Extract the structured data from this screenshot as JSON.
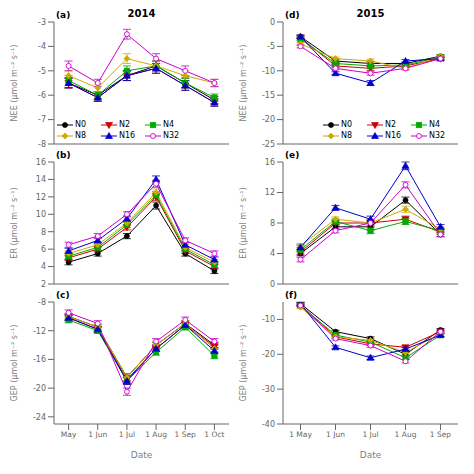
{
  "chart_data": [
    {
      "type": "line",
      "title": "2014",
      "ylabel": "NEE (μmol m⁻² s⁻¹)",
      "annotation": "(a)",
      "categories": [
        "May",
        "1 Jun",
        "1 Jul",
        "1 Aug",
        "1 Sep",
        "1 Oct"
      ],
      "series": [
        {
          "name": "N0",
          "color": "black",
          "marker": "circle",
          "values": [
            -5.5,
            -6.0,
            -5.2,
            -4.8,
            -5.5,
            -6.2
          ],
          "errors": [
            0.2,
            0.15,
            0.2,
            0.2,
            0.2,
            0.15
          ]
        },
        {
          "name": "N2",
          "color": "#cc0000",
          "marker": "triangle_down",
          "values": [
            -5.5,
            -6.1,
            -5.2,
            -4.9,
            -5.6,
            -6.3
          ],
          "errors": [
            0.2,
            0.15,
            0.2,
            0.2,
            0.2,
            0.15
          ]
        },
        {
          "name": "N4",
          "color": "#00aa00",
          "marker": "square",
          "values": [
            -5.4,
            -6.0,
            -5.0,
            -4.8,
            -5.5,
            -6.1
          ],
          "errors": [
            0.2,
            0.15,
            0.2,
            0.2,
            0.2,
            0.15
          ]
        },
        {
          "name": "N8",
          "color": "#ccaa00",
          "marker": "diamond",
          "values": [
            -5.2,
            -5.7,
            -4.5,
            -4.8,
            -5.2,
            -5.5
          ],
          "errors": [
            0.2,
            0.15,
            0.2,
            0.2,
            0.2,
            0.15
          ]
        },
        {
          "name": "N16",
          "color": "#0000cc",
          "marker": "triangle_up",
          "values": [
            -5.5,
            -6.1,
            -5.2,
            -4.9,
            -5.6,
            -6.3
          ],
          "errors": [
            0.2,
            0.15,
            0.2,
            0.2,
            0.2,
            0.15
          ]
        },
        {
          "name": "N32",
          "color": "#cc00cc",
          "marker": "circle_open",
          "values": [
            -4.8,
            -5.5,
            -3.5,
            -4.5,
            -5.0,
            -5.5
          ],
          "errors": [
            0.2,
            0.15,
            0.2,
            0.2,
            0.2,
            0.15
          ]
        }
      ],
      "ylim": [
        -8,
        -3
      ],
      "yticks": [
        -8,
        -7,
        -6,
        -5,
        -4,
        -3
      ],
      "grid": false,
      "legend": "lower left",
      "tick_labels": "y"
    },
    {
      "type": "line",
      "ylabel": "ER (μmol m⁻² s⁻¹)",
      "annotation": "(b)",
      "categories": [
        "May",
        "1 Jun",
        "1 Jul",
        "1 Aug",
        "1 Sep",
        "1 Oct"
      ],
      "series": [
        {
          "name": "N0",
          "color": "black",
          "marker": "circle",
          "values": [
            4.5,
            5.5,
            7.5,
            11.0,
            5.5,
            3.5
          ],
          "errors": [
            0.3,
            0.3,
            0.3,
            0.4,
            0.3,
            0.3
          ]
        },
        {
          "name": "N2",
          "color": "#cc0000",
          "marker": "triangle_down",
          "values": [
            5.0,
            6.0,
            8.5,
            12.0,
            5.8,
            4.0
          ],
          "errors": [
            0.3,
            0.3,
            0.3,
            0.4,
            0.3,
            0.3
          ]
        },
        {
          "name": "N4",
          "color": "#00aa00",
          "marker": "square",
          "values": [
            5.2,
            6.2,
            8.8,
            12.2,
            6.0,
            4.2
          ],
          "errors": [
            0.3,
            0.3,
            0.3,
            0.4,
            0.3,
            0.3
          ]
        },
        {
          "name": "N8",
          "color": "#ccaa00",
          "marker": "diamond",
          "values": [
            5.5,
            6.5,
            9.0,
            12.5,
            6.2,
            4.5
          ],
          "errors": [
            0.3,
            0.3,
            0.3,
            0.4,
            0.3,
            0.3
          ]
        },
        {
          "name": "N16",
          "color": "#0000cc",
          "marker": "triangle_up",
          "values": [
            5.8,
            7.0,
            9.5,
            14.0,
            6.5,
            4.8
          ],
          "errors": [
            0.3,
            0.3,
            0.3,
            0.4,
            0.3,
            0.3
          ]
        },
        {
          "name": "N32",
          "color": "#cc00cc",
          "marker": "circle_open",
          "values": [
            6.5,
            7.5,
            10.0,
            13.5,
            7.0,
            5.5
          ],
          "errors": [
            0.3,
            0.3,
            0.3,
            0.4,
            0.3,
            0.3
          ]
        }
      ],
      "ylim": [
        2,
        16
      ],
      "yticks": [
        2,
        4,
        6,
        8,
        10,
        12,
        14,
        16
      ],
      "grid": false,
      "tick_labels": "y"
    },
    {
      "type": "line",
      "xlabel": "Date",
      "ylabel": "GEP (μmol m⁻² s⁻¹)",
      "annotation": "(c)",
      "categories": [
        "May",
        "1 Jun",
        "1 Jul",
        "1 Aug",
        "1 Sep",
        "1 Oct"
      ],
      "series": [
        {
          "name": "N0",
          "color": "black",
          "marker": "circle",
          "values": [
            -10.0,
            -11.5,
            -18.5,
            -14.0,
            -11.0,
            -14.0
          ],
          "errors": [
            0.4,
            0.4,
            0.5,
            0.4,
            0.4,
            0.4
          ]
        },
        {
          "name": "N2",
          "color": "#cc0000",
          "marker": "triangle_down",
          "values": [
            -10.2,
            -11.8,
            -18.8,
            -14.5,
            -11.2,
            -14.2
          ],
          "errors": [
            0.4,
            0.4,
            0.5,
            0.4,
            0.4,
            0.4
          ]
        },
        {
          "name": "N4",
          "color": "#00aa00",
          "marker": "square",
          "values": [
            -10.5,
            -12.0,
            -19.0,
            -15.0,
            -11.5,
            -15.5
          ],
          "errors": [
            0.4,
            0.4,
            0.5,
            0.4,
            0.4,
            0.4
          ]
        },
        {
          "name": "N8",
          "color": "#ccaa00",
          "marker": "diamond",
          "values": [
            -10.0,
            -11.5,
            -18.5,
            -14.0,
            -11.0,
            -14.5
          ],
          "errors": [
            0.4,
            0.4,
            0.5,
            0.4,
            0.4,
            0.4
          ]
        },
        {
          "name": "N16",
          "color": "#0000cc",
          "marker": "triangle_up",
          "values": [
            -10.2,
            -11.8,
            -19.0,
            -14.5,
            -11.2,
            -14.8
          ],
          "errors": [
            0.4,
            0.4,
            0.5,
            0.4,
            0.4,
            0.4
          ]
        },
        {
          "name": "N32",
          "color": "#cc00cc",
          "marker": "circle_open",
          "values": [
            -9.5,
            -11.0,
            -20.5,
            -13.5,
            -10.5,
            -13.5
          ],
          "errors": [
            0.4,
            0.4,
            0.5,
            0.4,
            0.4,
            0.4
          ]
        }
      ],
      "ylim": [
        -25,
        -8
      ],
      "yticks": [
        -24,
        -20,
        -16,
        -12,
        -8
      ],
      "grid": false
    },
    {
      "type": "line",
      "title": "2015",
      "ylabel": "NEE (μmol m⁻² s⁻¹)",
      "annotation": "(d)",
      "categories": [
        "1 May",
        "1 Jun",
        "1 Jul",
        "1 Aug",
        "1 Sep"
      ],
      "series": [
        {
          "name": "N0",
          "color": "black",
          "marker": "circle",
          "values": [
            -3.0,
            -8.0,
            -8.5,
            -8.5,
            -7.0
          ],
          "errors": [
            0.3,
            0.3,
            0.4,
            0.3,
            0.3
          ]
        },
        {
          "name": "N2",
          "color": "#cc0000",
          "marker": "triangle_down",
          "values": [
            -3.2,
            -9.0,
            -9.5,
            -9.0,
            -7.5
          ],
          "errors": [
            0.3,
            0.3,
            0.4,
            0.3,
            0.3
          ]
        },
        {
          "name": "N4",
          "color": "#00aa00",
          "marker": "square",
          "values": [
            -3.5,
            -8.5,
            -9.0,
            -8.8,
            -7.2
          ],
          "errors": [
            0.3,
            0.3,
            0.4,
            0.3,
            0.3
          ]
        },
        {
          "name": "N8",
          "color": "#ccaa00",
          "marker": "diamond",
          "values": [
            -4.5,
            -7.5,
            -8.0,
            -9.5,
            -7.0
          ],
          "errors": [
            0.3,
            0.3,
            0.4,
            0.3,
            0.3
          ]
        },
        {
          "name": "N16",
          "color": "#0000cc",
          "marker": "triangle_up",
          "values": [
            -3.0,
            -10.5,
            -12.5,
            -8.0,
            -7.5
          ],
          "errors": [
            0.3,
            0.3,
            0.5,
            0.3,
            0.3
          ]
        },
        {
          "name": "N32",
          "color": "#cc00cc",
          "marker": "circle_open",
          "values": [
            -5.0,
            -9.5,
            -10.5,
            -9.5,
            -7.5
          ],
          "errors": [
            0.3,
            0.3,
            0.4,
            0.3,
            0.3
          ]
        }
      ],
      "ylim": [
        -25,
        0
      ],
      "yticks": [
        -25,
        -20,
        -15,
        -10,
        -5,
        0
      ],
      "grid": false,
      "legend": "lower right",
      "tick_labels": "y"
    },
    {
      "type": "line",
      "ylabel": "ER (μmol m⁻² s⁻¹)",
      "annotation": "(e)",
      "categories": [
        "1 May",
        "1 Jun",
        "1 Jul",
        "1 Aug",
        "1 Sep"
      ],
      "series": [
        {
          "name": "N0",
          "color": "black",
          "marker": "circle",
          "values": [
            4.0,
            7.5,
            7.5,
            11.0,
            6.5
          ],
          "errors": [
            0.3,
            0.3,
            0.4,
            0.4,
            0.3
          ]
        },
        {
          "name": "N2",
          "color": "#cc0000",
          "marker": "triangle_down",
          "values": [
            4.2,
            8.0,
            8.0,
            8.5,
            6.8
          ],
          "errors": [
            0.3,
            0.3,
            0.4,
            0.4,
            0.3
          ]
        },
        {
          "name": "N4",
          "color": "#00aa00",
          "marker": "square",
          "values": [
            4.5,
            8.2,
            7.0,
            8.2,
            7.0
          ],
          "errors": [
            0.3,
            0.3,
            0.4,
            0.4,
            0.3
          ]
        },
        {
          "name": "N8",
          "color": "#ccaa00",
          "marker": "diamond",
          "values": [
            5.0,
            8.5,
            8.0,
            9.8,
            7.2
          ],
          "errors": [
            0.3,
            0.3,
            0.4,
            0.4,
            0.3
          ]
        },
        {
          "name": "N16",
          "color": "#0000cc",
          "marker": "triangle_up",
          "values": [
            4.8,
            10.0,
            8.5,
            15.5,
            7.5
          ],
          "errors": [
            0.3,
            0.3,
            0.4,
            0.5,
            0.3
          ]
        },
        {
          "name": "N32",
          "color": "#cc00cc",
          "marker": "circle_open",
          "values": [
            3.2,
            7.0,
            8.0,
            13.0,
            6.5
          ],
          "errors": [
            0.3,
            0.3,
            0.4,
            0.4,
            0.3
          ]
        }
      ],
      "ylim": [
        0,
        16
      ],
      "yticks": [
        0,
        4,
        8,
        12,
        16
      ],
      "grid": false,
      "tick_labels": "y"
    },
    {
      "type": "line",
      "xlabel": "Date",
      "ylabel": "GEP (μmol m⁻² s⁻¹)",
      "annotation": "(f)",
      "categories": [
        "1 May",
        "1 Jun",
        "1 Jul",
        "1 Aug",
        "1 Sep"
      ],
      "series": [
        {
          "name": "N0",
          "color": "black",
          "marker": "circle",
          "values": [
            -5.5,
            -13.5,
            -15.5,
            -20.0,
            -13.0
          ],
          "errors": [
            0.4,
            0.4,
            0.5,
            0.5,
            0.4
          ]
        },
        {
          "name": "N2",
          "color": "#cc0000",
          "marker": "triangle_down",
          "values": [
            -5.8,
            -15.0,
            -17.0,
            -18.0,
            -13.5
          ],
          "errors": [
            0.4,
            0.4,
            0.5,
            0.5,
            0.4
          ]
        },
        {
          "name": "N4",
          "color": "#00aa00",
          "marker": "square",
          "values": [
            -6.0,
            -14.5,
            -16.5,
            -21.0,
            -14.5
          ],
          "errors": [
            0.4,
            0.4,
            0.5,
            0.5,
            0.4
          ]
        },
        {
          "name": "N8",
          "color": "#ccaa00",
          "marker": "diamond",
          "values": [
            -6.5,
            -15.0,
            -16.0,
            -19.5,
            -14.0
          ],
          "errors": [
            0.4,
            0.4,
            0.5,
            0.5,
            0.4
          ]
        },
        {
          "name": "N16",
          "color": "#0000cc",
          "marker": "triangle_up",
          "values": [
            -5.5,
            -18.0,
            -21.0,
            -18.5,
            -14.5
          ],
          "errors": [
            0.4,
            0.4,
            0.5,
            0.5,
            0.4
          ]
        },
        {
          "name": "N32",
          "color": "#cc00cc",
          "marker": "circle_open",
          "values": [
            -6.0,
            -15.5,
            -17.5,
            -22.0,
            -13.5
          ],
          "errors": [
            0.4,
            0.4,
            0.5,
            0.5,
            0.4
          ]
        }
      ],
      "ylim": [
        -40,
        -5
      ],
      "yticks": [
        -40,
        -30,
        -20,
        -10
      ],
      "grid": false
    }
  ]
}
